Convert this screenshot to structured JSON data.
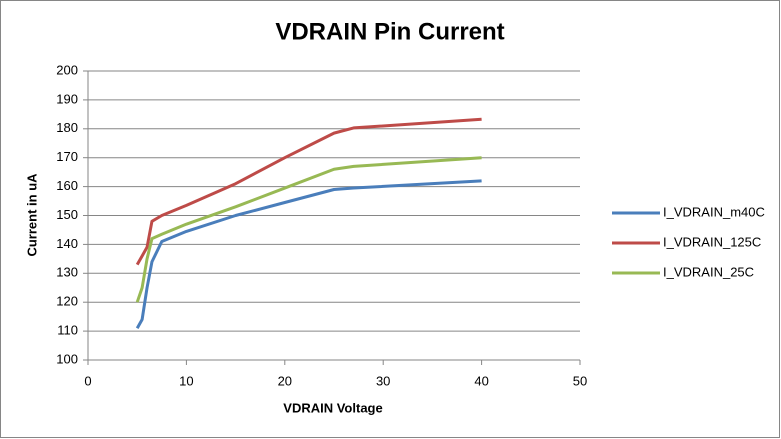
{
  "chart_data": {
    "type": "line",
    "title": "VDRAIN Pin Current",
    "x_label": "VDRAIN Voltage",
    "y_label": "Current in uA",
    "x": [
      5,
      5.5,
      6,
      6.5,
      7.5,
      10,
      15,
      20,
      25,
      27,
      40
    ],
    "series": [
      {
        "name": "I_VDRAIN_m40C",
        "color": "#4a7ebb",
        "values": [
          111,
          114,
          125,
          134,
          141,
          144.5,
          150,
          154.5,
          159,
          159.5,
          162
        ]
      },
      {
        "name": "I_VDRAIN_125C",
        "color": "#be4b48",
        "values": [
          133,
          136,
          139,
          148,
          150,
          153.5,
          161,
          170,
          178.5,
          180.3,
          183.3
        ]
      },
      {
        "name": "I_VDRAIN_25C",
        "color": "#98b954",
        "values": [
          120,
          125,
          135,
          142,
          143.5,
          147,
          153,
          159.5,
          166,
          167,
          170
        ]
      }
    ],
    "xlim": [
      0,
      50
    ],
    "xticks": [
      0,
      10,
      20,
      30,
      40,
      50
    ],
    "ylim": [
      100,
      200
    ],
    "yticks": [
      100,
      110,
      120,
      130,
      140,
      150,
      160,
      170,
      180,
      190,
      200
    ],
    "grid": true,
    "legend": "right"
  }
}
